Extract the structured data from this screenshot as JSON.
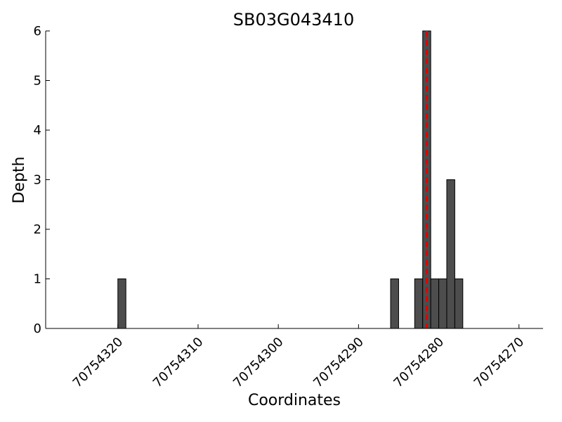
{
  "chart_data": {
    "type": "bar",
    "title": "SB03G043410",
    "xlabel": "Coordinates",
    "ylabel": "Depth",
    "x": [
      70754320,
      70754286,
      70754283,
      70754282,
      70754281,
      70754280,
      70754279,
      70754278
    ],
    "values": [
      1,
      1,
      1,
      6,
      1,
      1,
      3,
      1
    ],
    "color": "#4d4d4d",
    "marker": 70754281.5,
    "marker_color": "#e00000",
    "xlim": [
      70754329,
      70754267
    ],
    "xticks": [
      70754320,
      70754310,
      70754300,
      70754290,
      70754280,
      70754270
    ],
    "ylim": [
      0,
      6
    ],
    "yticks": [
      0,
      1,
      2,
      3,
      4,
      5,
      6
    ],
    "grid": false
  }
}
